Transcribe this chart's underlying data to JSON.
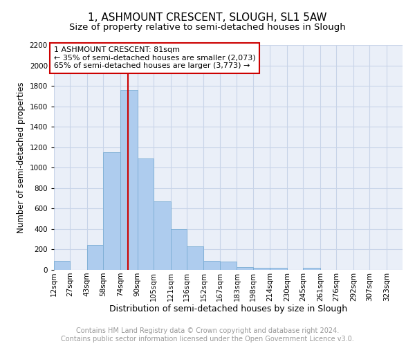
{
  "title": "1, ASHMOUNT CRESCENT, SLOUGH, SL1 5AW",
  "subtitle": "Size of property relative to semi-detached houses in Slough",
  "xlabel": "Distribution of semi-detached houses by size in Slough",
  "ylabel": "Number of semi-detached properties",
  "bin_labels": [
    "12sqm",
    "27sqm",
    "43sqm",
    "58sqm",
    "74sqm",
    "90sqm",
    "105sqm",
    "121sqm",
    "136sqm",
    "152sqm",
    "167sqm",
    "183sqm",
    "198sqm",
    "214sqm",
    "230sqm",
    "245sqm",
    "261sqm",
    "276sqm",
    "292sqm",
    "307sqm",
    "323sqm"
  ],
  "bin_edges": [
    12,
    27,
    43,
    58,
    74,
    90,
    105,
    121,
    136,
    152,
    167,
    183,
    198,
    214,
    230,
    245,
    261,
    276,
    292,
    307,
    323
  ],
  "bar_heights": [
    90,
    0,
    245,
    1150,
    1760,
    1090,
    670,
    400,
    230,
    90,
    80,
    30,
    20,
    20,
    0,
    20,
    0,
    0,
    0,
    0
  ],
  "bar_color": "#aeccee",
  "bar_edge_color": "#7aadd4",
  "vline_x": 81,
  "vline_color": "#cc0000",
  "annotation_text": "1 ASHMOUNT CRESCENT: 81sqm\n← 35% of semi-detached houses are smaller (2,073)\n65% of semi-detached houses are larger (3,773) →",
  "annotation_box_color": "#ffffff",
  "annotation_box_edge": "#cc0000",
  "ylim": [
    0,
    2200
  ],
  "yticks": [
    0,
    200,
    400,
    600,
    800,
    1000,
    1200,
    1400,
    1600,
    1800,
    2000,
    2200
  ],
  "grid_color": "#c8d4e8",
  "background_color": "#eaeff8",
  "footer_line1": "Contains HM Land Registry data © Crown copyright and database right 2024.",
  "footer_line2": "Contains public sector information licensed under the Open Government Licence v3.0.",
  "title_fontsize": 11,
  "subtitle_fontsize": 9.5,
  "xlabel_fontsize": 9,
  "ylabel_fontsize": 8.5,
  "footer_fontsize": 7,
  "tick_fontsize": 7.5,
  "annotation_fontsize": 8
}
